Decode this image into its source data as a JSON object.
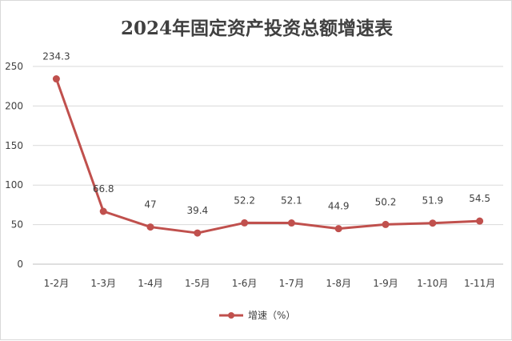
{
  "chart_data": {
    "type": "line",
    "title": "2024年固定资产投资总额增速表",
    "categories": [
      "1-2月",
      "1-3月",
      "1-4月",
      "1-5月",
      "1-6月",
      "1-7月",
      "1-8月",
      "1-9月",
      "1-10月",
      "1-11月"
    ],
    "series": [
      {
        "name": "增速（%）",
        "values": [
          234.3,
          66.8,
          47,
          39.4,
          52.2,
          52.1,
          44.9,
          50.2,
          51.9,
          54.5
        ],
        "labels": [
          "234.3",
          "66.8",
          "47",
          "39.4",
          "52.2",
          "52.1",
          "44.9",
          "50.2",
          "51.9",
          "54.5"
        ],
        "color": "#c0504d"
      }
    ],
    "yticks": [
      "0",
      "50",
      "100",
      "150",
      "200",
      "250"
    ],
    "ylim": [
      0,
      250
    ],
    "grid": true,
    "legend": "bottom"
  }
}
